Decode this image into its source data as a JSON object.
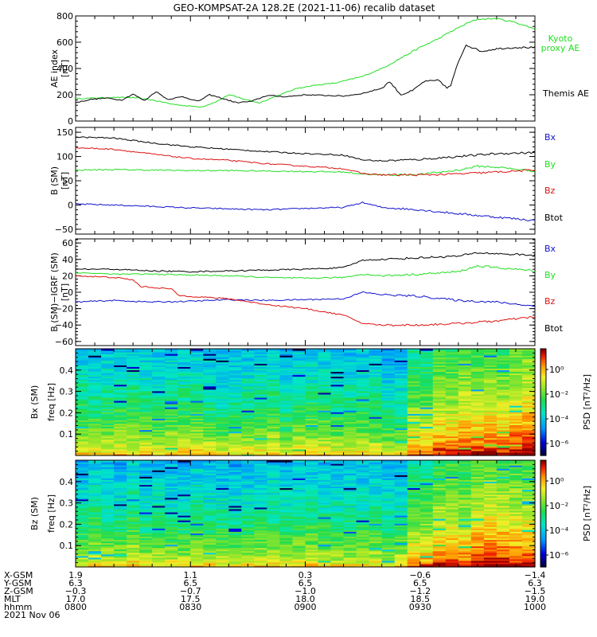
{
  "title": "GEO-KOMPSAT-2A 128.2E (2021-11-06) recalib dataset",
  "colors": {
    "black": "#000000",
    "green": "#22dd22",
    "red": "#dd1111",
    "blue": "#1111cc"
  },
  "time_axis": {
    "tick_times": [
      "0800",
      "0830",
      "0900",
      "0930",
      "1000"
    ],
    "rows": [
      {
        "label": "X-GSM",
        "values": [
          "1.9",
          "1.1",
          "0.3",
          "−0.6",
          "−1.4"
        ]
      },
      {
        "label": "Y-GSM",
        "values": [
          "6.3",
          "6.5",
          "6.5",
          "6.5",
          "6.3"
        ]
      },
      {
        "label": "Z-GSM",
        "values": [
          "−0.3",
          "−0.7",
          "−1.0",
          "−1.2",
          "−1.5"
        ]
      },
      {
        "label": "MLT",
        "values": [
          "17.0",
          "17.5",
          "18.0",
          "18.5",
          "19.0"
        ]
      },
      {
        "label": "hhmm",
        "values": [
          "0800",
          "0830",
          "0900",
          "0930",
          "1000"
        ]
      }
    ],
    "date": "2021 Nov 06"
  },
  "chart_data": [
    {
      "type": "line",
      "ylabel": "AE index",
      "yunit": "[nT]",
      "ylim": [
        0,
        800
      ],
      "yticks": [
        0,
        200,
        400,
        600,
        800
      ],
      "xrange": [
        "08:00",
        "10:00"
      ],
      "series": [
        {
          "name": "Kyoto proxy AE",
          "legend_lines": [
            "Kyoto",
            "proxy AE"
          ],
          "color": "#22dd22",
          "points": [
            [
              0,
              170
            ],
            [
              5,
              175
            ],
            [
              10,
              180
            ],
            [
              15,
              178
            ],
            [
              20,
              160
            ],
            [
              25,
              130
            ],
            [
              30,
              112
            ],
            [
              33,
              108
            ],
            [
              37,
              150
            ],
            [
              40,
              200
            ],
            [
              43,
              175
            ],
            [
              48,
              138
            ],
            [
              52,
              185
            ],
            [
              58,
              250
            ],
            [
              62,
              270
            ],
            [
              68,
              290
            ],
            [
              75,
              340
            ],
            [
              80,
              400
            ],
            [
              85,
              480
            ],
            [
              90,
              560
            ],
            [
              95,
              630
            ],
            [
              98,
              680
            ],
            [
              102,
              740
            ],
            [
              105,
              775
            ],
            [
              110,
              780
            ],
            [
              115,
              750
            ],
            [
              120,
              700
            ]
          ]
        },
        {
          "name": "Themis AE",
          "legend_lines": [
            "Themis AE"
          ],
          "color": "#000000",
          "points": [
            [
              0,
              140
            ],
            [
              4,
              165
            ],
            [
              8,
              175
            ],
            [
              12,
              160
            ],
            [
              15,
              205
            ],
            [
              18,
              155
            ],
            [
              21,
              225
            ],
            [
              24,
              165
            ],
            [
              28,
              185
            ],
            [
              32,
              150
            ],
            [
              35,
              200
            ],
            [
              38,
              175
            ],
            [
              42,
              140
            ],
            [
              46,
              150
            ],
            [
              50,
              195
            ],
            [
              55,
              185
            ],
            [
              60,
              200
            ],
            [
              65,
              195
            ],
            [
              70,
              190
            ],
            [
              75,
              210
            ],
            [
              80,
              250
            ],
            [
              82,
              300
            ],
            [
              85,
              200
            ],
            [
              88,
              230
            ],
            [
              91,
              300
            ],
            [
              95,
              310
            ],
            [
              97,
              250
            ],
            [
              98,
              270
            ],
            [
              100,
              450
            ],
            [
              102,
              580
            ],
            [
              106,
              530
            ],
            [
              110,
              550
            ],
            [
              115,
              560
            ],
            [
              120,
              560
            ]
          ]
        }
      ]
    },
    {
      "type": "line",
      "ylabel": "B (SM)",
      "ylabel_sub": "i",
      "yunit": "[nT]",
      "ylim": [
        -60,
        160
      ],
      "yticks": [
        -50,
        0,
        50,
        100,
        150
      ],
      "xrange": [
        "08:00",
        "10:00"
      ],
      "series": [
        {
          "name": "Bx",
          "color": "#1111cc",
          "points": [
            [
              0,
              2
            ],
            [
              10,
              0
            ],
            [
              20,
              -3
            ],
            [
              30,
              -6
            ],
            [
              40,
              -8
            ],
            [
              50,
              -10
            ],
            [
              60,
              -7
            ],
            [
              70,
              -5
            ],
            [
              75,
              5
            ],
            [
              80,
              -5
            ],
            [
              90,
              -10
            ],
            [
              100,
              -18
            ],
            [
              110,
              -25
            ],
            [
              120,
              -32
            ]
          ]
        },
        {
          "name": "By",
          "color": "#22dd22",
          "points": [
            [
              0,
              72
            ],
            [
              10,
              73
            ],
            [
              20,
              72
            ],
            [
              30,
              71
            ],
            [
              40,
              71
            ],
            [
              50,
              70
            ],
            [
              60,
              69
            ],
            [
              70,
              68
            ],
            [
              75,
              64
            ],
            [
              80,
              62
            ],
            [
              90,
              63
            ],
            [
              100,
              72
            ],
            [
              105,
              80
            ],
            [
              110,
              78
            ],
            [
              120,
              70
            ]
          ]
        },
        {
          "name": "Bz",
          "color": "#dd1111",
          "points": [
            [
              0,
              118
            ],
            [
              10,
              115
            ],
            [
              20,
              105
            ],
            [
              30,
              96
            ],
            [
              40,
              92
            ],
            [
              50,
              85
            ],
            [
              60,
              80
            ],
            [
              70,
              75
            ],
            [
              75,
              65
            ],
            [
              80,
              62
            ],
            [
              90,
              62
            ],
            [
              100,
              64
            ],
            [
              110,
              68
            ],
            [
              120,
              72
            ]
          ]
        },
        {
          "name": "Btot",
          "color": "#000000",
          "points": [
            [
              0,
              140
            ],
            [
              10,
              138
            ],
            [
              20,
              128
            ],
            [
              30,
              120
            ],
            [
              40,
              115
            ],
            [
              50,
              110
            ],
            [
              60,
              106
            ],
            [
              70,
              103
            ],
            [
              75,
              93
            ],
            [
              80,
              91
            ],
            [
              90,
              94
            ],
            [
              100,
              100
            ],
            [
              110,
              106
            ],
            [
              120,
              108
            ]
          ]
        }
      ]
    },
    {
      "type": "line",
      "ylabel": "B (SM)−IGRF (SM)",
      "yunit": "[nT]",
      "ylim": [
        -65,
        65
      ],
      "yticks": [
        -60,
        -40,
        -20,
        0,
        20,
        40,
        60
      ],
      "xrange": [
        "08:00",
        "10:00"
      ],
      "series": [
        {
          "name": "Bx",
          "color": "#1111cc",
          "points": [
            [
              0,
              -12
            ],
            [
              10,
              -10
            ],
            [
              20,
              -12
            ],
            [
              30,
              -11
            ],
            [
              40,
              -9
            ],
            [
              50,
              -10
            ],
            [
              60,
              -9
            ],
            [
              70,
              -8
            ],
            [
              75,
              0
            ],
            [
              80,
              -3
            ],
            [
              90,
              -5
            ],
            [
              100,
              -10
            ],
            [
              110,
              -12
            ],
            [
              120,
              -17
            ]
          ]
        },
        {
          "name": "By",
          "color": "#22dd22",
          "points": [
            [
              0,
              24
            ],
            [
              10,
              22
            ],
            [
              20,
              22
            ],
            [
              30,
              21
            ],
            [
              40,
              20
            ],
            [
              50,
              18
            ],
            [
              60,
              17
            ],
            [
              70,
              18
            ],
            [
              75,
              22
            ],
            [
              80,
              20
            ],
            [
              90,
              22
            ],
            [
              100,
              25
            ],
            [
              105,
              32
            ],
            [
              110,
              30
            ],
            [
              120,
              26
            ]
          ]
        },
        {
          "name": "Bz",
          "color": "#dd1111",
          "points": [
            [
              0,
              20
            ],
            [
              10,
              18
            ],
            [
              15,
              15
            ],
            [
              17,
              7
            ],
            [
              25,
              4
            ],
            [
              27,
              -4
            ],
            [
              40,
              -8
            ],
            [
              50,
              -15
            ],
            [
              60,
              -20
            ],
            [
              70,
              -28
            ],
            [
              75,
              -38
            ],
            [
              80,
              -40
            ],
            [
              90,
              -40
            ],
            [
              100,
              -38
            ],
            [
              110,
              -35
            ],
            [
              120,
              -30
            ]
          ]
        },
        {
          "name": "Btot",
          "color": "#000000",
          "points": [
            [
              0,
              28
            ],
            [
              10,
              28
            ],
            [
              20,
              26
            ],
            [
              30,
              25
            ],
            [
              40,
              26
            ],
            [
              50,
              27
            ],
            [
              60,
              28
            ],
            [
              70,
              30
            ],
            [
              75,
              39
            ],
            [
              80,
              40
            ],
            [
              90,
              42
            ],
            [
              100,
              44
            ],
            [
              105,
              48
            ],
            [
              110,
              47
            ],
            [
              120,
              45
            ]
          ]
        }
      ]
    },
    {
      "type": "heatmap",
      "ylabel": "Bx (SM)",
      "yunit": "freq [Hz]",
      "ylim": [
        0,
        0.5
      ],
      "yticks": [
        0.1,
        0.2,
        0.3,
        0.4
      ],
      "colorbar": {
        "label": "PSD [nT²/Hz]",
        "ticks": [
          "10⁰",
          "10⁻²",
          "10⁻⁴",
          "10⁻⁶"
        ]
      }
    },
    {
      "type": "heatmap",
      "ylabel": "Bz (SM)",
      "yunit": "freq [Hz]",
      "ylim": [
        0,
        0.5
      ],
      "yticks": [
        0.1,
        0.2,
        0.3,
        0.4
      ],
      "colorbar": {
        "label": "PSD [nT²/Hz]",
        "ticks": [
          "10⁰",
          "10⁻²",
          "10⁻⁴",
          "10⁻⁶"
        ]
      }
    }
  ]
}
